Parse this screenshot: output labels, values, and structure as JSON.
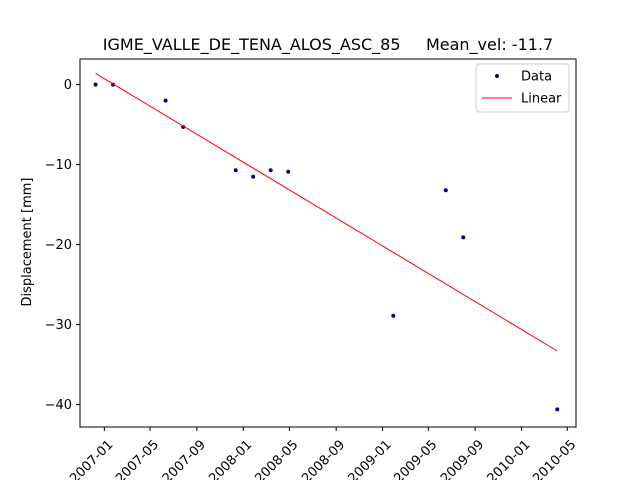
{
  "chart_data": {
    "type": "scatter",
    "title": "IGME_VALLE_DE_TENA_ALOS_ASC_85     Mean_vel: -11.7",
    "xlabel": "",
    "ylabel": "Displacement [mm]",
    "x_ticks": [
      "2007-01",
      "2007-05",
      "2007-09",
      "2008-01",
      "2008-05",
      "2008-09",
      "2009-01",
      "2009-05",
      "2009-09",
      "2010-01",
      "2010-05"
    ],
    "y_ticks": [
      0,
      -10,
      -20,
      -30,
      -40
    ],
    "xlim": [
      "2006-10-29",
      "2010-05-24"
    ],
    "ylim": [
      -42.8,
      3.2
    ],
    "grid": false,
    "legend_position": "top-right",
    "series": [
      {
        "name": "Data",
        "style": "markers",
        "color": "#00007f",
        "points": [
          {
            "x": "2006-12-09",
            "y": 0.0
          },
          {
            "x": "2007-01-24",
            "y": 0.0
          },
          {
            "x": "2007-06-11",
            "y": -2.0
          },
          {
            "x": "2007-07-27",
            "y": -5.3
          },
          {
            "x": "2007-12-12",
            "y": -10.7
          },
          {
            "x": "2008-01-27",
            "y": -11.5
          },
          {
            "x": "2008-03-13",
            "y": -10.7
          },
          {
            "x": "2008-04-28",
            "y": -10.9
          },
          {
            "x": "2009-01-29",
            "y": -28.9
          },
          {
            "x": "2009-06-16",
            "y": -13.2
          },
          {
            "x": "2009-08-01",
            "y": -19.1
          },
          {
            "x": "2010-04-05",
            "y": -40.6
          }
        ]
      },
      {
        "name": "Linear",
        "style": "line",
        "color": "#ff0000",
        "points": [
          {
            "x": "2006-12-09",
            "y": 1.4
          },
          {
            "x": "2010-04-05",
            "y": -33.3
          }
        ]
      }
    ]
  }
}
